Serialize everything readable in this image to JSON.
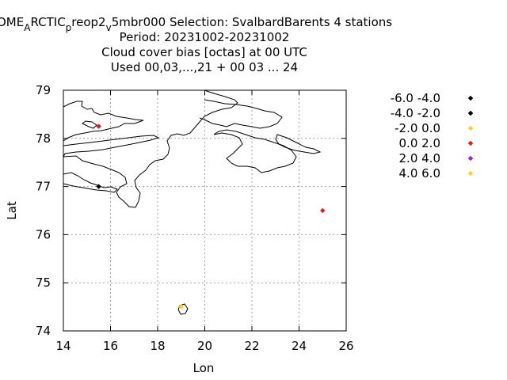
{
  "chart_data": {
    "type": "scatter",
    "title_lines": [
      "OME",
      "A",
      "RCTIC",
      "p",
      "reop2",
      "v",
      "5mbr000   Selection: SvalbardBarents      4 stations",
      "Period: 20231002-20231002",
      "Cloud cover bias [octas] at  00 UTC",
      "Used  00,03,...,21  + 00 03 ... 24"
    ],
    "xlabel": "Lon",
    "ylabel": "Lat",
    "xlim": [
      14,
      26
    ],
    "ylim": [
      74,
      79
    ],
    "x_ticks": [
      "14",
      "16",
      "18",
      "20",
      "22",
      "24",
      "26"
    ],
    "y_ticks": [
      "74",
      "75",
      "76",
      "77",
      "78",
      "79"
    ],
    "grid": true,
    "legend_position": "right",
    "legend": [
      {
        "label": "-6.0 -4.0",
        "color": "#000000"
      },
      {
        "label": "-4.0 -2.0",
        "color": "#000000"
      },
      {
        "label": "-2.0 0.0",
        "color": "#ffd21f"
      },
      {
        "label": "0.0 2.0",
        "color": "#e0201a"
      },
      {
        "label": "2.0 4.0",
        "color": "#8a2be2"
      },
      {
        "label": "4.0 6.0",
        "color": "#ffd21f"
      }
    ],
    "points": [
      {
        "lon": 15.5,
        "lat": 78.25,
        "color": "#e0201a"
      },
      {
        "lon": 15.5,
        "lat": 77.0,
        "color": "#000000"
      },
      {
        "lon": 25.0,
        "lat": 76.5,
        "color": "#e0201a"
      },
      {
        "lon": 19.0,
        "lat": 74.5,
        "color": "#ffd21f"
      }
    ]
  }
}
